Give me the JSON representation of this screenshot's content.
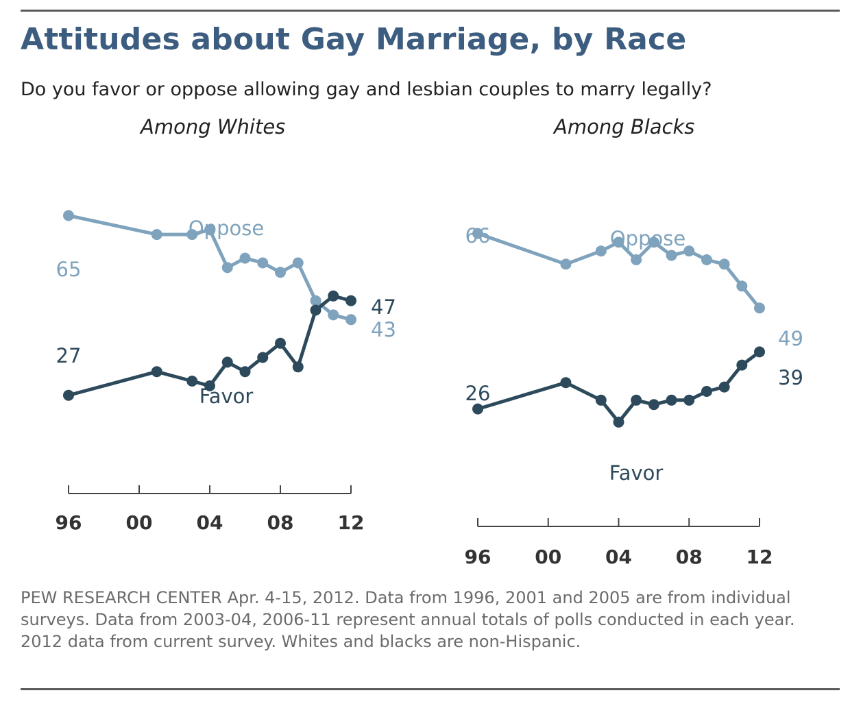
{
  "header": {
    "title": "Attitudes about Gay Marriage, by Race",
    "question": "Do you favor or oppose allowing gay and lesbian couples to marry legally?"
  },
  "colors": {
    "favor": "#2d4a5c",
    "oppose": "#7fa3bd",
    "title": "#3d5d80",
    "axis": "#444444"
  },
  "chart_data": [
    {
      "type": "line",
      "panel_title": "Among Whites",
      "x_ticks": [
        "96",
        "00",
        "04",
        "08",
        "12"
      ],
      "xlim": [
        1996,
        2012
      ],
      "ylim": [
        20,
        70
      ],
      "grid": false,
      "series": [
        {
          "name": "Oppose",
          "x": [
            1996,
            2001,
            2003,
            2004,
            2005,
            2006,
            2007,
            2008,
            2009,
            2010,
            2011,
            2012
          ],
          "values": [
            65,
            61,
            61,
            62,
            54,
            56,
            55,
            53,
            55,
            47,
            44,
            43
          ],
          "start_label": "65",
          "end_label": "43"
        },
        {
          "name": "Favor",
          "x": [
            1996,
            2001,
            2003,
            2004,
            2005,
            2006,
            2007,
            2008,
            2009,
            2010,
            2011,
            2012
          ],
          "values": [
            27,
            32,
            30,
            29,
            34,
            32,
            35,
            38,
            33,
            45,
            48,
            47
          ],
          "start_label": "27",
          "end_label": "47"
        }
      ]
    },
    {
      "type": "line",
      "panel_title": "Among Blacks",
      "x_ticks": [
        "96",
        "00",
        "04",
        "08",
        "12"
      ],
      "xlim": [
        1996,
        2012
      ],
      "ylim": [
        20,
        70
      ],
      "grid": false,
      "series": [
        {
          "name": "Oppose",
          "x": [
            1996,
            2001,
            2003,
            2004,
            2005,
            2006,
            2007,
            2008,
            2009,
            2010,
            2011,
            2012
          ],
          "values": [
            66,
            59,
            62,
            64,
            60,
            64,
            61,
            62,
            60,
            59,
            54,
            49
          ],
          "start_label": "66",
          "end_label": "49"
        },
        {
          "name": "Favor",
          "x": [
            1996,
            2001,
            2003,
            2004,
            2005,
            2006,
            2007,
            2008,
            2009,
            2010,
            2011,
            2012
          ],
          "values": [
            26,
            32,
            28,
            23,
            28,
            27,
            28,
            28,
            30,
            31,
            36,
            39
          ],
          "start_label": "26",
          "end_label": "39"
        }
      ]
    }
  ],
  "footer": {
    "note": "PEW RESEARCH CENTER Apr. 4-15, 2012. Data from 1996, 2001 and 2005 are from individual surveys. Data from 2003-04, 2006-11 represent annual totals of polls conducted in each year. 2012 data from current survey. Whites and blacks are non-Hispanic."
  }
}
